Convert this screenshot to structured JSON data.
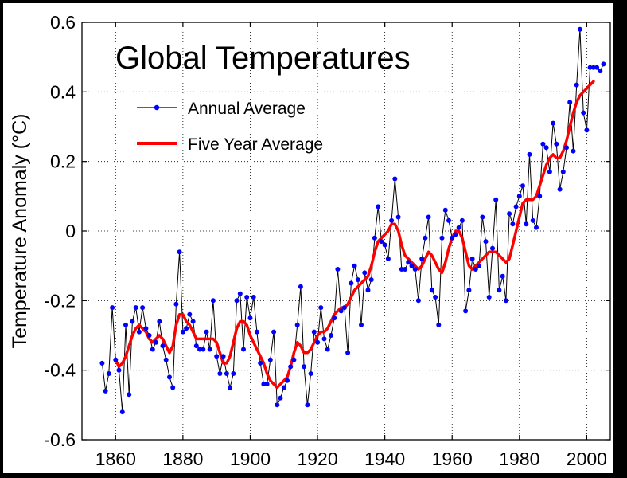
{
  "chart_data": {
    "type": "line",
    "title": "Global Temperatures",
    "ylabel": "Temperature Anomaly (°C)",
    "xlabel": "",
    "xlim": [
      1850,
      2007
    ],
    "ylim": [
      -0.6,
      0.6
    ],
    "xticks": [
      1860,
      1880,
      1900,
      1920,
      1940,
      1960,
      1980,
      2000
    ],
    "yticks": [
      -0.6,
      -0.4,
      -0.2,
      0,
      0.2,
      0.4,
      0.6
    ],
    "xtick_labels": [
      "1860",
      "1880",
      "1900",
      "1920",
      "1940",
      "1960",
      "1980",
      "2000"
    ],
    "ytick_labels": [
      "-0.6",
      "-0.4",
      "-0.2",
      "0",
      "0.2",
      "0.4",
      "0.6"
    ],
    "grid": true,
    "legend_position": "top-left",
    "series": [
      {
        "name": "Annual Average",
        "color": "#000000",
        "marker_color": "#0000ff",
        "x": [
          1856,
          1857,
          1858,
          1859,
          1860,
          1861,
          1862,
          1863,
          1864,
          1865,
          1866,
          1867,
          1868,
          1869,
          1870,
          1871,
          1872,
          1873,
          1874,
          1875,
          1876,
          1877,
          1878,
          1879,
          1880,
          1881,
          1882,
          1883,
          1884,
          1885,
          1886,
          1887,
          1888,
          1889,
          1890,
          1891,
          1892,
          1893,
          1894,
          1895,
          1896,
          1897,
          1898,
          1899,
          1900,
          1901,
          1902,
          1903,
          1904,
          1905,
          1906,
          1907,
          1908,
          1909,
          1910,
          1911,
          1912,
          1913,
          1914,
          1915,
          1916,
          1917,
          1918,
          1919,
          1920,
          1921,
          1922,
          1923,
          1924,
          1925,
          1926,
          1927,
          1928,
          1929,
          1930,
          1931,
          1932,
          1933,
          1934,
          1935,
          1936,
          1937,
          1938,
          1939,
          1940,
          1941,
          1942,
          1943,
          1944,
          1945,
          1946,
          1947,
          1948,
          1949,
          1950,
          1951,
          1952,
          1953,
          1954,
          1955,
          1956,
          1957,
          1958,
          1959,
          1960,
          1961,
          1962,
          1963,
          1964,
          1965,
          1966,
          1967,
          1968,
          1969,
          1970,
          1971,
          1972,
          1973,
          1974,
          1975,
          1976,
          1977,
          1978,
          1979,
          1980,
          1981,
          1982,
          1983,
          1984,
          1985,
          1986,
          1987,
          1988,
          1989,
          1990,
          1991,
          1992,
          1993,
          1994,
          1995,
          1996,
          1997,
          1998,
          1999,
          2000,
          2001,
          2002,
          2003,
          2004,
          2005
        ],
        "values": [
          -0.38,
          -0.46,
          -0.41,
          -0.22,
          -0.37,
          -0.4,
          -0.52,
          -0.27,
          -0.47,
          -0.26,
          -0.22,
          -0.29,
          -0.22,
          -0.28,
          -0.3,
          -0.34,
          -0.32,
          -0.26,
          -0.33,
          -0.37,
          -0.42,
          -0.45,
          -0.21,
          -0.06,
          -0.29,
          -0.28,
          -0.24,
          -0.26,
          -0.33,
          -0.34,
          -0.34,
          -0.29,
          -0.34,
          -0.2,
          -0.36,
          -0.41,
          -0.36,
          -0.41,
          -0.45,
          -0.41,
          -0.2,
          -0.18,
          -0.34,
          -0.19,
          -0.25,
          -0.19,
          -0.29,
          -0.38,
          -0.44,
          -0.44,
          -0.37,
          -0.29,
          -0.5,
          -0.48,
          -0.45,
          -0.43,
          -0.39,
          -0.37,
          -0.27,
          -0.16,
          -0.39,
          -0.5,
          -0.41,
          -0.29,
          -0.32,
          -0.22,
          -0.31,
          -0.34,
          -0.3,
          -0.25,
          -0.11,
          -0.23,
          -0.22,
          -0.35,
          -0.15,
          -0.1,
          -0.14,
          -0.27,
          -0.12,
          -0.17,
          -0.14,
          -0.02,
          0.07,
          -0.03,
          -0.04,
          -0.08,
          0.03,
          0.15,
          0.04,
          -0.11,
          -0.11,
          -0.09,
          -0.1,
          -0.11,
          -0.2,
          -0.08,
          -0.02,
          0.04,
          -0.17,
          -0.19,
          -0.27,
          -0.02,
          0.06,
          0.03,
          -0.02,
          -0.01,
          0.01,
          0.03,
          -0.23,
          -0.17,
          -0.08,
          -0.11,
          -0.1,
          0.04,
          -0.03,
          -0.19,
          -0.05,
          0.09,
          -0.17,
          -0.13,
          -0.2,
          0.05,
          0.02,
          0.07,
          0.1,
          0.13,
          0.02,
          0.22,
          0.03,
          0.01,
          0.1,
          0.25,
          0.24,
          0.17,
          0.31,
          0.25,
          0.12,
          0.17,
          0.24,
          0.37,
          0.23,
          0.42,
          0.58,
          0.34,
          0.29,
          0.47,
          0.47,
          0.47,
          0.46,
          0.48
        ]
      },
      {
        "name": "Five Year Average",
        "color": "#ff0000",
        "x": [
          1860,
          1861,
          1862,
          1863,
          1864,
          1865,
          1866,
          1867,
          1868,
          1869,
          1870,
          1871,
          1872,
          1873,
          1874,
          1875,
          1876,
          1877,
          1878,
          1879,
          1880,
          1881,
          1882,
          1883,
          1884,
          1885,
          1886,
          1887,
          1888,
          1889,
          1890,
          1891,
          1892,
          1893,
          1894,
          1895,
          1896,
          1897,
          1898,
          1899,
          1900,
          1901,
          1902,
          1903,
          1904,
          1905,
          1906,
          1907,
          1908,
          1909,
          1910,
          1911,
          1912,
          1913,
          1914,
          1915,
          1916,
          1917,
          1918,
          1919,
          1920,
          1921,
          1922,
          1923,
          1924,
          1925,
          1926,
          1927,
          1928,
          1929,
          1930,
          1931,
          1932,
          1933,
          1934,
          1935,
          1936,
          1937,
          1938,
          1939,
          1940,
          1941,
          1942,
          1943,
          1944,
          1945,
          1946,
          1947,
          1948,
          1949,
          1950,
          1951,
          1952,
          1953,
          1954,
          1955,
          1956,
          1957,
          1958,
          1959,
          1960,
          1961,
          1962,
          1963,
          1964,
          1965,
          1966,
          1967,
          1968,
          1969,
          1970,
          1971,
          1972,
          1973,
          1974,
          1975,
          1976,
          1977,
          1978,
          1979,
          1980,
          1981,
          1982,
          1983,
          1984,
          1985,
          1986,
          1987,
          1988,
          1989,
          1990,
          1991,
          1992,
          1993,
          1994,
          1995,
          1996,
          1997,
          1998,
          1999,
          2000,
          2001,
          2002
        ],
        "values": [
          -0.37,
          -0.39,
          -0.38,
          -0.36,
          -0.33,
          -0.3,
          -0.28,
          -0.27,
          -0.28,
          -0.29,
          -0.31,
          -0.32,
          -0.31,
          -0.3,
          -0.31,
          -0.33,
          -0.35,
          -0.33,
          -0.27,
          -0.24,
          -0.24,
          -0.26,
          -0.27,
          -0.29,
          -0.31,
          -0.31,
          -0.31,
          -0.31,
          -0.31,
          -0.31,
          -0.32,
          -0.35,
          -0.38,
          -0.38,
          -0.36,
          -0.32,
          -0.28,
          -0.26,
          -0.26,
          -0.27,
          -0.3,
          -0.32,
          -0.34,
          -0.36,
          -0.38,
          -0.41,
          -0.43,
          -0.44,
          -0.45,
          -0.44,
          -0.43,
          -0.42,
          -0.39,
          -0.35,
          -0.32,
          -0.33,
          -0.35,
          -0.35,
          -0.34,
          -0.32,
          -0.3,
          -0.29,
          -0.29,
          -0.28,
          -0.26,
          -0.24,
          -0.23,
          -0.22,
          -0.22,
          -0.21,
          -0.19,
          -0.17,
          -0.16,
          -0.15,
          -0.14,
          -0.13,
          -0.1,
          -0.06,
          -0.03,
          -0.02,
          -0.01,
          0.0,
          0.02,
          0.02,
          0.0,
          -0.04,
          -0.07,
          -0.08,
          -0.09,
          -0.1,
          -0.11,
          -0.1,
          -0.08,
          -0.06,
          -0.07,
          -0.09,
          -0.11,
          -0.12,
          -0.09,
          -0.05,
          -0.02,
          0.0,
          0.0,
          -0.02,
          -0.06,
          -0.1,
          -0.11,
          -0.1,
          -0.09,
          -0.08,
          -0.07,
          -0.06,
          -0.06,
          -0.06,
          -0.07,
          -0.08,
          -0.09,
          -0.08,
          -0.04,
          0.0,
          0.04,
          0.08,
          0.09,
          0.09,
          0.09,
          0.1,
          0.13,
          0.16,
          0.19,
          0.21,
          0.22,
          0.21,
          0.21,
          0.23,
          0.26,
          0.3,
          0.34,
          0.37,
          0.39,
          0.4,
          0.41,
          0.42,
          0.43
        ]
      }
    ]
  }
}
